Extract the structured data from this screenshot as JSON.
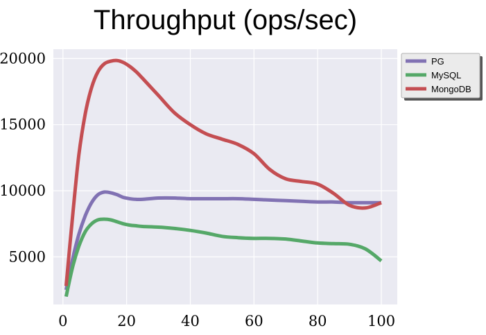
{
  "chart_data": {
    "type": "line",
    "title": "Throughput (ops/sec)",
    "xlabel": "",
    "ylabel": "",
    "xlim": [
      -3,
      105
    ],
    "ylim": [
      1400,
      20700
    ],
    "xticks": [
      0,
      20,
      40,
      60,
      80,
      100
    ],
    "yticks": [
      5000,
      10000,
      15000,
      20000
    ],
    "grid": true,
    "legend_placement": "outside top-right",
    "series": [
      {
        "name": "PG",
        "color": "#8172b3",
        "x": [
          1,
          3,
          5,
          7,
          9,
          11,
          13,
          15,
          17,
          19,
          21,
          23,
          25,
          30,
          35,
          40,
          45,
          50,
          55,
          60,
          65,
          70,
          75,
          80,
          85,
          90,
          95,
          100
        ],
        "y": [
          2500,
          4800,
          6700,
          8100,
          9100,
          9700,
          9900,
          9850,
          9700,
          9500,
          9400,
          9350,
          9350,
          9450,
          9450,
          9400,
          9400,
          9400,
          9400,
          9350,
          9300,
          9250,
          9200,
          9150,
          9150,
          9100,
          9100,
          9100
        ]
      },
      {
        "name": "MySQL",
        "color": "#55a868",
        "x": [
          1,
          3,
          5,
          7,
          9,
          11,
          13,
          15,
          17,
          19,
          21,
          23,
          25,
          30,
          35,
          40,
          45,
          50,
          55,
          60,
          65,
          70,
          75,
          80,
          85,
          90,
          95,
          100
        ],
        "y": [
          2000,
          4200,
          5800,
          6900,
          7500,
          7800,
          7850,
          7800,
          7650,
          7500,
          7400,
          7350,
          7300,
          7250,
          7150,
          7000,
          6800,
          6550,
          6450,
          6400,
          6400,
          6350,
          6200,
          6050,
          6000,
          5950,
          5600,
          4700
        ]
      },
      {
        "name": "MongoDB",
        "color": "#c44e52",
        "x": [
          1,
          3,
          5,
          7,
          9,
          11,
          13,
          15,
          17,
          19,
          21,
          23,
          25,
          30,
          35,
          40,
          45,
          50,
          55,
          60,
          65,
          70,
          75,
          80,
          85,
          90,
          95,
          100
        ],
        "y": [
          2800,
          8000,
          12700,
          15800,
          17800,
          19000,
          19600,
          19800,
          19850,
          19700,
          19400,
          19000,
          18500,
          17200,
          15900,
          15000,
          14300,
          13900,
          13500,
          12800,
          11600,
          10900,
          10700,
          10500,
          9800,
          8900,
          8700,
          9100
        ]
      }
    ]
  }
}
